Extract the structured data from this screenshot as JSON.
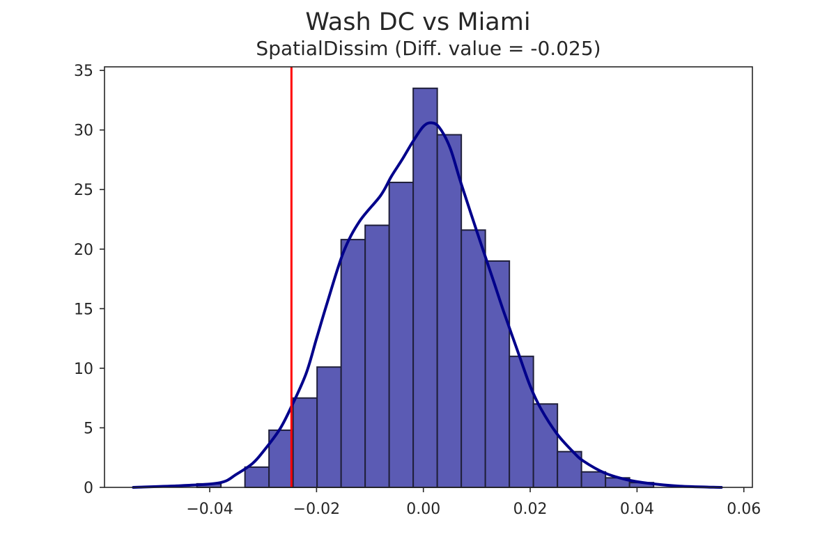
{
  "chart_data": {
    "type": "bar",
    "title": "Wash DC vs Miami",
    "subtitle": "SpatialDissim (Diff. value = -0.025)",
    "xlabel": "",
    "ylabel": "",
    "xlim": [
      -0.0597,
      0.0616
    ],
    "ylim": [
      0,
      35.3
    ],
    "x_ticks": [
      -0.04,
      -0.02,
      0.0,
      0.02,
      0.04,
      0.06
    ],
    "x_tick_labels": [
      "−0.04",
      "−0.02",
      "0.00",
      "0.02",
      "0.04",
      "0.06"
    ],
    "y_ticks": [
      0,
      5,
      10,
      15,
      20,
      25,
      30,
      35
    ],
    "y_tick_labels": [
      "0",
      "5",
      "10",
      "15",
      "20",
      "25",
      "30",
      "35"
    ],
    "grid": false,
    "histogram": {
      "bin_edges": [
        -0.0424,
        -0.0379,
        -0.0334,
        -0.0289,
        -0.0244,
        -0.0199,
        -0.0154,
        -0.0109,
        -0.0064,
        -0.0019,
        0.0026,
        0.0071,
        0.0116,
        0.0161,
        0.0206,
        0.0251,
        0.0296,
        0.0341,
        0.0386,
        0.0431
      ],
      "values": [
        0.3,
        0.0,
        1.7,
        4.8,
        7.5,
        10.1,
        20.8,
        22.0,
        25.6,
        33.5,
        29.6,
        21.6,
        19.0,
        11.0,
        7.0,
        3.0,
        1.3,
        0.8,
        0.4
      ],
      "color": "#5B5BB4",
      "edgecolor": "#1F1F3A"
    },
    "kde": {
      "color": "#00008B",
      "x": [
        -0.0543,
        -0.045,
        -0.038,
        -0.035,
        -0.032,
        -0.03,
        -0.027,
        -0.025,
        -0.022,
        -0.02,
        -0.018,
        -0.015,
        -0.012,
        -0.008,
        -0.006,
        -0.004,
        -0.002,
        0.0,
        0.0015,
        0.003,
        0.005,
        0.007,
        0.01,
        0.013,
        0.015,
        0.018,
        0.02,
        0.022,
        0.025,
        0.028,
        0.03,
        0.034,
        0.038,
        0.042,
        0.048,
        0.0558
      ],
      "y": [
        0.0,
        0.15,
        0.4,
        1.1,
        2.0,
        3.0,
        4.8,
        6.5,
        9.5,
        12.5,
        15.5,
        19.7,
        22.3,
        24.5,
        26.1,
        27.5,
        29.0,
        30.3,
        30.6,
        30.2,
        28.5,
        25.6,
        21.5,
        17.5,
        14.8,
        11.0,
        8.5,
        6.6,
        4.5,
        3.0,
        2.2,
        1.2,
        0.65,
        0.35,
        0.1,
        0.0
      ]
    },
    "reference_line": {
      "x": -0.0247,
      "color": "#FF0000"
    }
  }
}
